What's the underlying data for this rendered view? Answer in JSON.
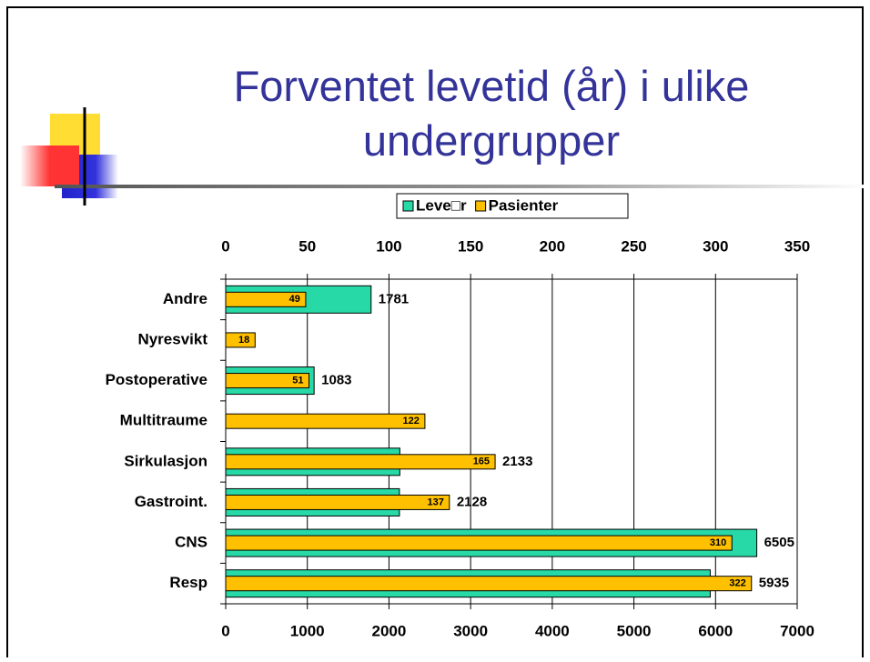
{
  "chart_data": {
    "type": "bar",
    "orientation": "horizontal",
    "title": "Forventet levetid (år) i ulike undergrupper",
    "categories": [
      "Andre",
      "Nyresvikt",
      "Postoperative",
      "Multitraume",
      "Sirkulasjon",
      "Gastroint.",
      "CNS",
      "Resp"
    ],
    "series": [
      {
        "name": "Leve□r",
        "color": "#26d9a6",
        "axis": "x",
        "values": [
          1781,
          null,
          1083,
          null,
          2133,
          2128,
          6505,
          5935
        ]
      },
      {
        "name": "Pasienter",
        "color": "#ffc000",
        "axis": "x2",
        "values": [
          49,
          18,
          51,
          122,
          165,
          137,
          310,
          322
        ]
      }
    ],
    "xlim": [
      0,
      7000
    ],
    "xticks": [
      0,
      1000,
      2000,
      3000,
      4000,
      5000,
      6000,
      7000
    ],
    "x2lim": [
      0,
      350
    ],
    "x2ticks": [
      0,
      50,
      100,
      150,
      200,
      250,
      300,
      350
    ],
    "grid": true,
    "legend": "top"
  }
}
